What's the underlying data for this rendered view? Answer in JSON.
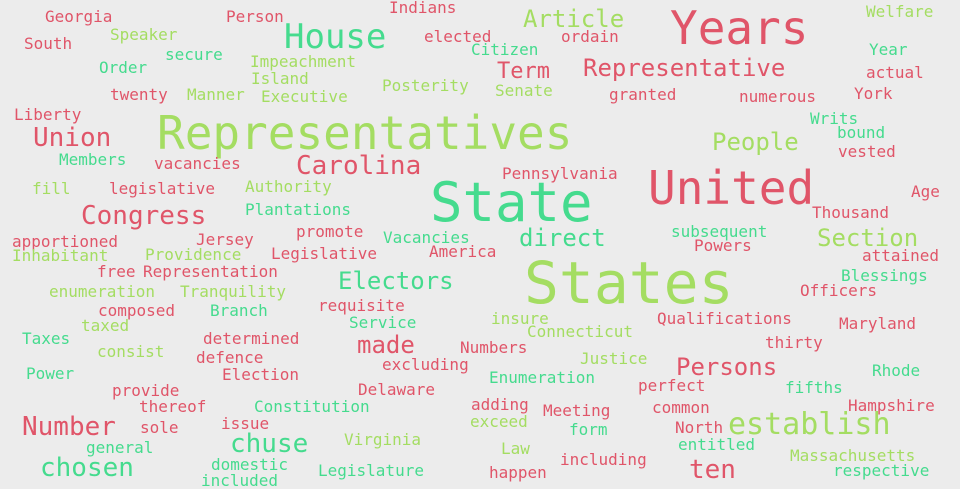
{
  "colors": {
    "background": "#ececec",
    "red": "#e05569",
    "lime": "#a4dd62",
    "mint": "#45db8e"
  },
  "words": [
    {
      "text": "Georgia",
      "color": "red"
    },
    {
      "text": "Person",
      "color": "red"
    },
    {
      "text": "Indians",
      "color": "red"
    },
    {
      "text": "Article",
      "color": "lime"
    },
    {
      "text": "Years",
      "color": "red"
    },
    {
      "text": "Welfare",
      "color": "lime"
    },
    {
      "text": "South",
      "color": "red"
    },
    {
      "text": "Speaker",
      "color": "lime"
    },
    {
      "text": "House",
      "color": "mint"
    },
    {
      "text": "elected",
      "color": "red"
    },
    {
      "text": "ordain",
      "color": "red"
    },
    {
      "text": "Citizen",
      "color": "mint"
    },
    {
      "text": "secure",
      "color": "mint"
    },
    {
      "text": "Impeachment",
      "color": "lime"
    },
    {
      "text": "Year",
      "color": "mint"
    },
    {
      "text": "Order",
      "color": "mint"
    },
    {
      "text": "Term",
      "color": "red"
    },
    {
      "text": "Representative",
      "color": "red"
    },
    {
      "text": "actual",
      "color": "red"
    },
    {
      "text": "Island",
      "color": "lime"
    },
    {
      "text": "Posterity",
      "color": "lime"
    },
    {
      "text": "Senate",
      "color": "lime"
    },
    {
      "text": "twenty",
      "color": "red"
    },
    {
      "text": "Manner",
      "color": "lime"
    },
    {
      "text": "Executive",
      "color": "lime"
    },
    {
      "text": "granted",
      "color": "red"
    },
    {
      "text": "numerous",
      "color": "red"
    },
    {
      "text": "York",
      "color": "red"
    },
    {
      "text": "Liberty",
      "color": "red"
    },
    {
      "text": "Writs",
      "color": "mint"
    },
    {
      "text": "Representatives",
      "color": "lime"
    },
    {
      "text": "bound",
      "color": "mint"
    },
    {
      "text": "Union",
      "color": "red"
    },
    {
      "text": "People",
      "color": "lime"
    },
    {
      "text": "vested",
      "color": "red"
    },
    {
      "text": "Members",
      "color": "mint"
    },
    {
      "text": "vacancies",
      "color": "red"
    },
    {
      "text": "Carolina",
      "color": "red"
    },
    {
      "text": "Pennsylvania",
      "color": "red"
    },
    {
      "text": "United",
      "color": "red"
    },
    {
      "text": "fill",
      "color": "lime"
    },
    {
      "text": "legislative",
      "color": "red"
    },
    {
      "text": "Authority",
      "color": "lime"
    },
    {
      "text": "Age",
      "color": "red"
    },
    {
      "text": "State",
      "color": "mint"
    },
    {
      "text": "Congress",
      "color": "red"
    },
    {
      "text": "Plantations",
      "color": "mint"
    },
    {
      "text": "Thousand",
      "color": "red"
    },
    {
      "text": "promote",
      "color": "red"
    },
    {
      "text": "subsequent",
      "color": "mint"
    },
    {
      "text": "apportioned",
      "color": "red"
    },
    {
      "text": "Jersey",
      "color": "red"
    },
    {
      "text": "Vacancies",
      "color": "mint"
    },
    {
      "text": "direct",
      "color": "mint"
    },
    {
      "text": "Section",
      "color": "lime"
    },
    {
      "text": "Inhabitant",
      "color": "lime"
    },
    {
      "text": "Providence",
      "color": "lime"
    },
    {
      "text": "Legislative",
      "color": "red"
    },
    {
      "text": "America",
      "color": "red"
    },
    {
      "text": "Powers",
      "color": "red"
    },
    {
      "text": "attained",
      "color": "red"
    },
    {
      "text": "free",
      "color": "red"
    },
    {
      "text": "Representation",
      "color": "red"
    },
    {
      "text": "Electors",
      "color": "mint"
    },
    {
      "text": "States",
      "color": "lime"
    },
    {
      "text": "Blessings",
      "color": "mint"
    },
    {
      "text": "enumeration",
      "color": "lime"
    },
    {
      "text": "Tranquility",
      "color": "lime"
    },
    {
      "text": "Officers",
      "color": "red"
    },
    {
      "text": "requisite",
      "color": "red"
    },
    {
      "text": "composed",
      "color": "red"
    },
    {
      "text": "Branch",
      "color": "mint"
    },
    {
      "text": "insure",
      "color": "lime"
    },
    {
      "text": "Qualifications",
      "color": "red"
    },
    {
      "text": "taxed",
      "color": "lime"
    },
    {
      "text": "Service",
      "color": "mint"
    },
    {
      "text": "Connecticut",
      "color": "lime"
    },
    {
      "text": "Maryland",
      "color": "red"
    },
    {
      "text": "Taxes",
      "color": "mint"
    },
    {
      "text": "determined",
      "color": "red"
    },
    {
      "text": "made",
      "color": "red"
    },
    {
      "text": "thirty",
      "color": "red"
    },
    {
      "text": "consist",
      "color": "lime"
    },
    {
      "text": "Numbers",
      "color": "red"
    },
    {
      "text": "Justice",
      "color": "lime"
    },
    {
      "text": "defence",
      "color": "red"
    },
    {
      "text": "excluding",
      "color": "red"
    },
    {
      "text": "Persons",
      "color": "red"
    },
    {
      "text": "Power",
      "color": "mint"
    },
    {
      "text": "Election",
      "color": "red"
    },
    {
      "text": "Enumeration",
      "color": "mint"
    },
    {
      "text": "Rhode",
      "color": "mint"
    },
    {
      "text": "provide",
      "color": "red"
    },
    {
      "text": "Delaware",
      "color": "red"
    },
    {
      "text": "perfect",
      "color": "red"
    },
    {
      "text": "fifths",
      "color": "mint"
    },
    {
      "text": "thereof",
      "color": "red"
    },
    {
      "text": "Constitution",
      "color": "mint"
    },
    {
      "text": "adding",
      "color": "red"
    },
    {
      "text": "Meeting",
      "color": "red"
    },
    {
      "text": "common",
      "color": "red"
    },
    {
      "text": "Hampshire",
      "color": "red"
    },
    {
      "text": "Number",
      "color": "red"
    },
    {
      "text": "sole",
      "color": "red"
    },
    {
      "text": "issue",
      "color": "red"
    },
    {
      "text": "exceed",
      "color": "lime"
    },
    {
      "text": "form",
      "color": "mint"
    },
    {
      "text": "North",
      "color": "red"
    },
    {
      "text": "establish",
      "color": "lime"
    },
    {
      "text": "chuse",
      "color": "mint"
    },
    {
      "text": "Virginia",
      "color": "lime"
    },
    {
      "text": "general",
      "color": "mint"
    },
    {
      "text": "Law",
      "color": "lime"
    },
    {
      "text": "entitled",
      "color": "mint"
    },
    {
      "text": "chosen",
      "color": "mint"
    },
    {
      "text": "domestic",
      "color": "mint"
    },
    {
      "text": "including",
      "color": "red"
    },
    {
      "text": "ten",
      "color": "red"
    },
    {
      "text": "Massachusetts",
      "color": "lime"
    },
    {
      "text": "Legislature",
      "color": "mint"
    },
    {
      "text": "happen",
      "color": "red"
    },
    {
      "text": "included",
      "color": "mint"
    },
    {
      "text": "respective",
      "color": "mint"
    }
  ]
}
